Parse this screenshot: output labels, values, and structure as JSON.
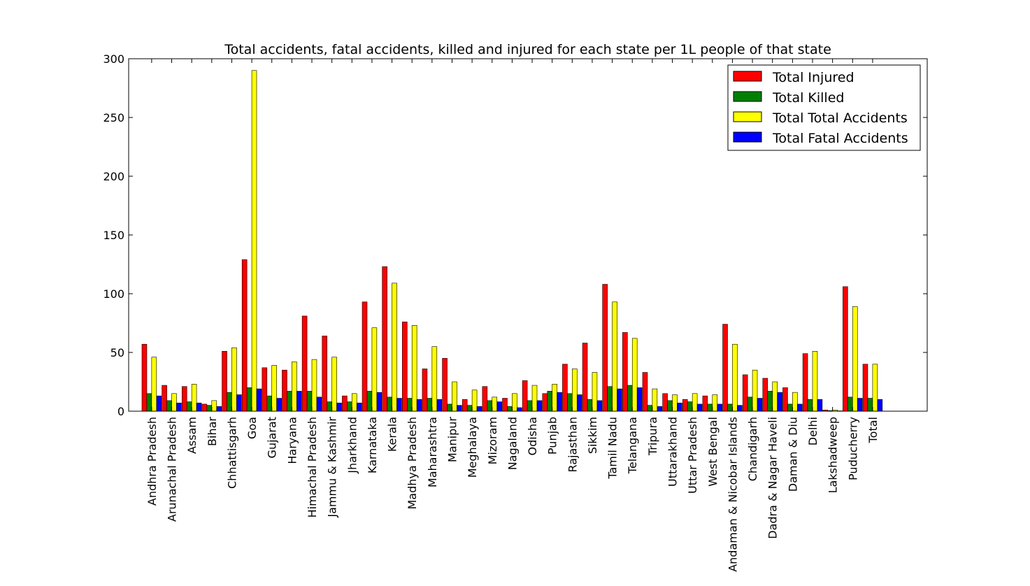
{
  "chart_data": {
    "type": "bar",
    "title": "Total accidents, fatal accidents, killed and injured for each state per 1L people of that state",
    "xlabel": "",
    "ylabel": "",
    "ylim": [
      0,
      300
    ],
    "yticks": [
      0,
      50,
      100,
      150,
      200,
      250,
      300
    ],
    "legend_position": "top-right",
    "grid": false,
    "categories": [
      "Andhra Pradesh",
      "Arunachal Pradesh",
      "Assam",
      "Bihar",
      "Chhattisgarh",
      "Goa",
      "Gujarat",
      "Haryana",
      "Himachal Pradesh",
      "Jammu & Kashmir",
      "Jharkhand",
      "Karnataka",
      "Kerala",
      "Madhya Pradesh",
      "Maharashtra",
      "Manipur",
      "Meghalaya",
      "Mizoram",
      "Nagaland",
      "Odisha",
      "Punjab",
      "Rajasthan",
      "Sikkim",
      "Tamil Nadu",
      "Telangana",
      "Tripura",
      "Uttarakhand",
      "Uttar Pradesh",
      "West Bengal",
      "Andaman & Nicobar Islands",
      "Chandigarh",
      "Dadra & Nagar Haveli",
      "Daman & Diu",
      "Delhi",
      "Lakshadweep",
      "Puducherry",
      "Total"
    ],
    "series": [
      {
        "name": "Total Injured",
        "color": "#ff0000",
        "values": [
          57,
          22,
          21,
          6,
          51,
          129,
          37,
          35,
          81,
          64,
          13,
          93,
          123,
          76,
          36,
          45,
          10,
          21,
          11,
          26,
          15,
          40,
          58,
          108,
          67,
          33,
          15,
          10,
          13,
          74,
          31,
          28,
          20,
          49,
          1,
          106,
          40
        ]
      },
      {
        "name": "Total Killed",
        "color": "#008000",
        "values": [
          15,
          9,
          8,
          5,
          16,
          20,
          13,
          17,
          17,
          8,
          8,
          17,
          12,
          11,
          11,
          6,
          5,
          9,
          4,
          9,
          17,
          15,
          10,
          21,
          22,
          5,
          9,
          8,
          6,
          6,
          12,
          17,
          6,
          10,
          0.5,
          12,
          11
        ]
      },
      {
        "name": "Total Total Accidents",
        "color": "#ffff00",
        "values": [
          46,
          15,
          23,
          9,
          54,
          290,
          39,
          42,
          44,
          46,
          15,
          71,
          109,
          73,
          55,
          25,
          18,
          12,
          15,
          22,
          23,
          36,
          33,
          93,
          62,
          19,
          14,
          15,
          14,
          57,
          35,
          25,
          16,
          51,
          1,
          89,
          40
        ]
      },
      {
        "name": "Total Fatal Accidents",
        "color": "#0000ff",
        "values": [
          13,
          7,
          7,
          4,
          14,
          19,
          11,
          17,
          12,
          7,
          7,
          16,
          11,
          10,
          10,
          5,
          4,
          8,
          3,
          9,
          16,
          14,
          9,
          19,
          20,
          4,
          7,
          6,
          6,
          5,
          11,
          16,
          6,
          10,
          0.3,
          11,
          10
        ]
      }
    ]
  }
}
